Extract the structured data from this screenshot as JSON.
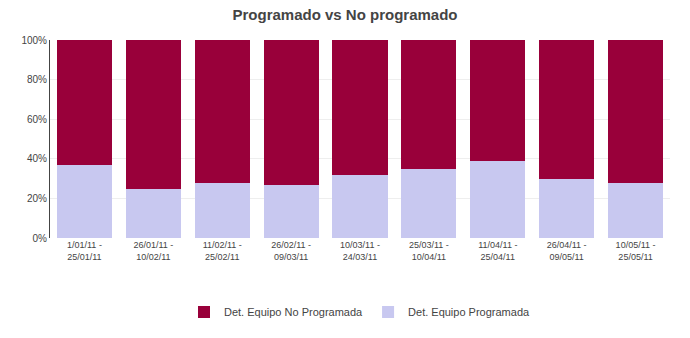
{
  "chart_data": {
    "type": "bar",
    "title": "Programado vs No programado",
    "categories": [
      "1/01/11 -\n25/01/11",
      "26/01/11 -\n10/02/11",
      "11/02/11 -\n25/02/11",
      "26/02/11 -\n09/03/11",
      "10/03/11 -\n24/03/11",
      "25/03/11 -\n10/04/11",
      "11/04/11 -\n25/04/11",
      "26/04/11 -\n09/05/11",
      "10/05/11 -\n25/05/11"
    ],
    "series": [
      {
        "name": "Det. Equipo Programada",
        "color": "#c8c8f0",
        "values": [
          0.37,
          0.25,
          0.28,
          0.27,
          0.32,
          0.35,
          0.39,
          0.3,
          0.28
        ]
      },
      {
        "name": "Det. Equipo No Programada",
        "color": "#99003a",
        "values": [
          0.63,
          0.75,
          0.72,
          0.73,
          0.68,
          0.65,
          0.61,
          0.7,
          0.72
        ]
      }
    ],
    "stacked": true,
    "ylim": [
      0,
      1.0
    ],
    "yticks": [
      {
        "value": 0.0,
        "label": "0%"
      },
      {
        "value": 0.2,
        "label": "20%"
      },
      {
        "value": 0.4,
        "label": "40%"
      },
      {
        "value": 0.6,
        "label": "60%"
      },
      {
        "value": 0.8,
        "label": "80%"
      },
      {
        "value": 1.0,
        "label": "100%"
      }
    ],
    "grid": true,
    "legend": "bottom"
  }
}
